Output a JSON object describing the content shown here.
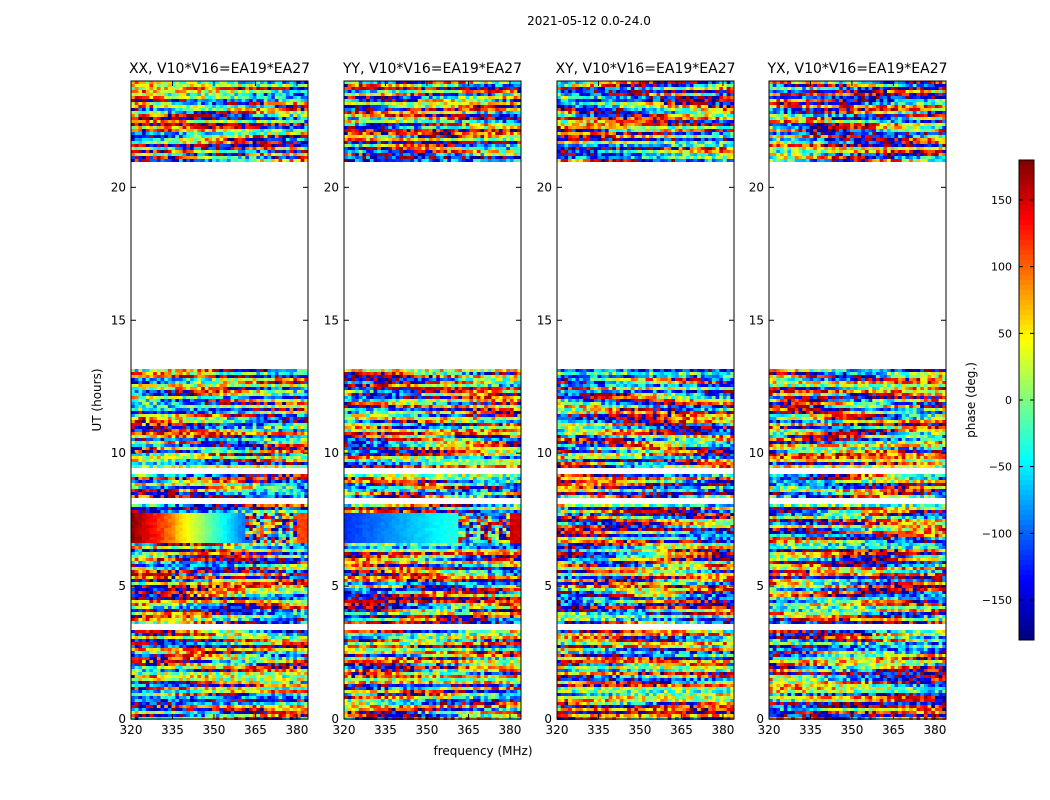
{
  "suptitle": "2021-05-12 0.0-24.0",
  "colors": {
    "jet": [
      "#00007f",
      "#0000ff",
      "#007fff",
      "#00ffff",
      "#7fff7f",
      "#ffff00",
      "#ff7f00",
      "#ff0000",
      "#7f0000"
    ],
    "axis": "#000000",
    "blank": "#ffffff"
  },
  "chart_data": {
    "type": "heatmap",
    "xlabel": "frequency (MHz)",
    "ylabel": "UT (hours)",
    "xlim": [
      320,
      384
    ],
    "ylim": [
      0,
      24
    ],
    "xticks": [
      320,
      335,
      350,
      365,
      380
    ],
    "yticks": [
      0,
      5,
      10,
      15,
      20
    ],
    "panels": [
      {
        "title": "XX, V10*V16=EA19*EA27",
        "calibrated_phase_deg": [
          180,
          -100
        ],
        "calibrated_tail_deg": 110
      },
      {
        "title": "YY, V10*V16=EA19*EA27",
        "calibrated_phase_deg": [
          -120,
          -30
        ],
        "calibrated_tail_deg": 150
      },
      {
        "title": "XY, V10*V16=EA19*EA27",
        "calibrated_phase_deg": null,
        "calibrated_tail_deg": null
      },
      {
        "title": "YX, V10*V16=EA19*EA27",
        "calibrated_phase_deg": null,
        "calibrated_tail_deg": null
      }
    ],
    "flagged_ut_ranges": [
      [
        3.4,
        3.6
      ],
      [
        8.1,
        8.3
      ],
      [
        9.2,
        9.4
      ],
      [
        13.2,
        20.9
      ]
    ],
    "calibrated_ut_range": [
      6.6,
      7.8
    ],
    "colorbar": {
      "label": "phase (deg.)",
      "vmin": -180,
      "vmax": 180,
      "ticks": [
        -150,
        -100,
        -50,
        0,
        50,
        100,
        150
      ],
      "tick_labels": [
        "−150",
        "−100",
        "−50",
        "0",
        "50",
        "100",
        "150"
      ]
    }
  }
}
